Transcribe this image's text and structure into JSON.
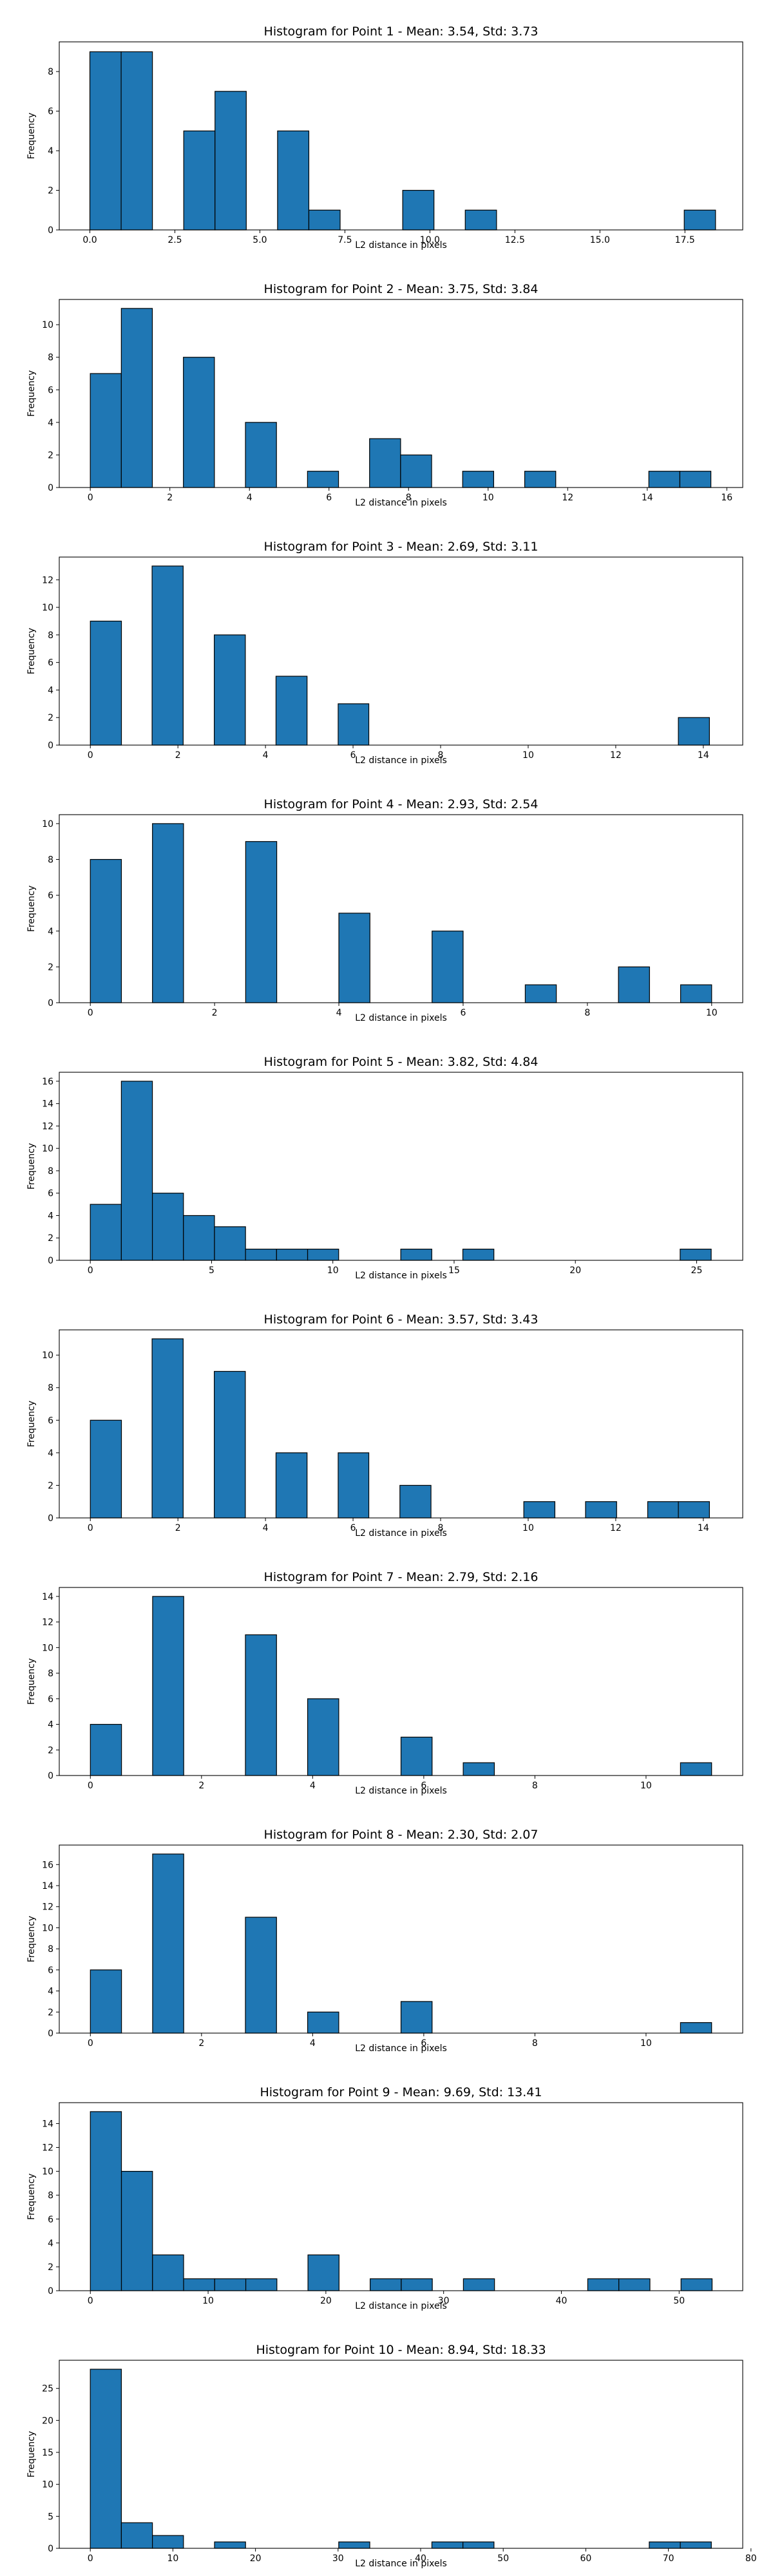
{
  "chart_data": [
    {
      "type": "histogram",
      "title": "Histogram for Point 1 - Mean: 3.54, Std: 3.73",
      "xlabel": "L2 distance in pixels",
      "ylabel": "Frequency",
      "xlim": [
        -0.9,
        19.2
      ],
      "ylim": [
        0,
        9.5
      ],
      "xticks": [
        0.0,
        2.5,
        5.0,
        7.5,
        10.0,
        12.5,
        15.0,
        17.5
      ],
      "xtick_labels": [
        "0.0",
        "2.5",
        "5.0",
        "7.5",
        "10.0",
        "12.5",
        "15.0",
        "17.5"
      ],
      "yticks": [
        0,
        2,
        4,
        6,
        8
      ],
      "bins": [
        {
          "x0": 0.0,
          "x1": 0.92,
          "count": 9
        },
        {
          "x0": 0.92,
          "x1": 1.84,
          "count": 9
        },
        {
          "x0": 2.76,
          "x1": 3.68,
          "count": 5
        },
        {
          "x0": 3.68,
          "x1": 4.6,
          "count": 7
        },
        {
          "x0": 5.52,
          "x1": 6.44,
          "count": 5
        },
        {
          "x0": 6.44,
          "x1": 7.36,
          "count": 1
        },
        {
          "x0": 9.2,
          "x1": 10.12,
          "count": 2
        },
        {
          "x0": 11.04,
          "x1": 11.96,
          "count": 1
        },
        {
          "x0": 17.48,
          "x1": 18.4,
          "count": 1
        }
      ]
    },
    {
      "type": "histogram",
      "title": "Histogram for Point 2 - Mean: 3.75, Std: 3.84",
      "xlabel": "L2 distance in pixels",
      "ylabel": "Frequency",
      "xlim": [
        -0.78,
        16.4
      ],
      "ylim": [
        0,
        11.55
      ],
      "xticks": [
        0,
        2,
        4,
        6,
        8,
        10,
        12,
        14,
        16
      ],
      "xtick_labels": [
        "0",
        "2",
        "4",
        "6",
        "8",
        "10",
        "12",
        "14",
        "16"
      ],
      "yticks": [
        0,
        2,
        4,
        6,
        8,
        10
      ],
      "bins": [
        {
          "x0": 0.0,
          "x1": 0.78,
          "count": 7
        },
        {
          "x0": 0.78,
          "x1": 1.56,
          "count": 11
        },
        {
          "x0": 2.34,
          "x1": 3.12,
          "count": 8
        },
        {
          "x0": 3.9,
          "x1": 4.68,
          "count": 4
        },
        {
          "x0": 5.46,
          "x1": 6.24,
          "count": 1
        },
        {
          "x0": 7.02,
          "x1": 7.8,
          "count": 3
        },
        {
          "x0": 7.8,
          "x1": 8.58,
          "count": 2
        },
        {
          "x0": 9.36,
          "x1": 10.14,
          "count": 1
        },
        {
          "x0": 10.92,
          "x1": 11.7,
          "count": 1
        },
        {
          "x0": 14.04,
          "x1": 14.82,
          "count": 1
        },
        {
          "x0": 14.82,
          "x1": 15.6,
          "count": 1
        }
      ]
    },
    {
      "type": "histogram",
      "title": "Histogram for Point 3 - Mean: 2.69, Std: 3.11",
      "xlabel": "L2 distance in pixels",
      "ylabel": "Frequency",
      "xlim": [
        -0.71,
        14.9
      ],
      "ylim": [
        0,
        13.65
      ],
      "xticks": [
        0,
        2,
        4,
        6,
        8,
        10,
        12,
        14
      ],
      "xtick_labels": [
        "0",
        "2",
        "4",
        "6",
        "8",
        "10",
        "12",
        "14"
      ],
      "yticks": [
        0,
        2,
        4,
        6,
        8,
        10,
        12
      ],
      "bins": [
        {
          "x0": 0.0,
          "x1": 0.71,
          "count": 9
        },
        {
          "x0": 1.41,
          "x1": 2.12,
          "count": 13
        },
        {
          "x0": 2.83,
          "x1": 3.54,
          "count": 8
        },
        {
          "x0": 4.24,
          "x1": 4.95,
          "count": 5
        },
        {
          "x0": 5.66,
          "x1": 6.36,
          "count": 3
        },
        {
          "x0": 13.43,
          "x1": 14.14,
          "count": 2
        }
      ]
    },
    {
      "type": "histogram",
      "title": "Histogram for Point 4 - Mean: 2.93, Std: 2.54",
      "xlabel": "L2 distance in pixels",
      "ylabel": "Frequency",
      "xlim": [
        -0.5,
        10.5
      ],
      "ylim": [
        0,
        10.5
      ],
      "xticks": [
        0,
        2,
        4,
        6,
        8,
        10
      ],
      "xtick_labels": [
        "0",
        "2",
        "4",
        "6",
        "8",
        "10"
      ],
      "yticks": [
        0,
        2,
        4,
        6,
        8,
        10
      ],
      "bins": [
        {
          "x0": 0.0,
          "x1": 0.5,
          "count": 8
        },
        {
          "x0": 1.0,
          "x1": 1.5,
          "count": 10
        },
        {
          "x0": 2.5,
          "x1": 3.0,
          "count": 9
        },
        {
          "x0": 4.0,
          "x1": 4.5,
          "count": 5
        },
        {
          "x0": 5.5,
          "x1": 6.0,
          "count": 4
        },
        {
          "x0": 7.0,
          "x1": 7.5,
          "count": 1
        },
        {
          "x0": 8.5,
          "x1": 9.0,
          "count": 2
        },
        {
          "x0": 9.5,
          "x1": 10.0,
          "count": 1
        }
      ]
    },
    {
      "type": "histogram",
      "title": "Histogram for Point 5 - Mean: 3.82, Std: 4.84",
      "xlabel": "L2 distance in pixels",
      "ylabel": "Frequency",
      "xlim": [
        -1.28,
        26.9
      ],
      "ylim": [
        0,
        16.8
      ],
      "xticks": [
        0,
        5,
        10,
        15,
        20,
        25
      ],
      "xtick_labels": [
        "0",
        "5",
        "10",
        "15",
        "20",
        "25"
      ],
      "yticks": [
        0,
        2,
        4,
        6,
        8,
        10,
        12,
        14,
        16
      ],
      "bins": [
        {
          "x0": 0.0,
          "x1": 1.28,
          "count": 5
        },
        {
          "x0": 1.28,
          "x1": 2.56,
          "count": 16
        },
        {
          "x0": 2.56,
          "x1": 3.84,
          "count": 6
        },
        {
          "x0": 3.84,
          "x1": 5.12,
          "count": 4
        },
        {
          "x0": 5.12,
          "x1": 6.4,
          "count": 3
        },
        {
          "x0": 6.4,
          "x1": 7.68,
          "count": 1
        },
        {
          "x0": 7.68,
          "x1": 8.96,
          "count": 1
        },
        {
          "x0": 8.96,
          "x1": 10.24,
          "count": 1
        },
        {
          "x0": 12.8,
          "x1": 14.08,
          "count": 1
        },
        {
          "x0": 15.36,
          "x1": 16.64,
          "count": 1
        },
        {
          "x0": 24.32,
          "x1": 25.6,
          "count": 1
        }
      ]
    },
    {
      "type": "histogram",
      "title": "Histogram for Point 6 - Mean: 3.57, Std: 3.43",
      "xlabel": "L2 distance in pixels",
      "ylabel": "Frequency",
      "xlim": [
        -0.71,
        14.9
      ],
      "ylim": [
        0,
        11.55
      ],
      "xticks": [
        0,
        2,
        4,
        6,
        8,
        10,
        12,
        14
      ],
      "xtick_labels": [
        "0",
        "2",
        "4",
        "6",
        "8",
        "10",
        "12",
        "14"
      ],
      "yticks": [
        0,
        2,
        4,
        6,
        8,
        10
      ],
      "bins": [
        {
          "x0": 0.0,
          "x1": 0.71,
          "count": 6
        },
        {
          "x0": 1.41,
          "x1": 2.12,
          "count": 11
        },
        {
          "x0": 2.83,
          "x1": 3.54,
          "count": 9
        },
        {
          "x0": 4.24,
          "x1": 4.95,
          "count": 4
        },
        {
          "x0": 5.66,
          "x1": 6.36,
          "count": 4
        },
        {
          "x0": 7.07,
          "x1": 7.78,
          "count": 2
        },
        {
          "x0": 9.9,
          "x1": 10.61,
          "count": 1
        },
        {
          "x0": 11.31,
          "x1": 12.02,
          "count": 1
        },
        {
          "x0": 12.73,
          "x1": 13.43,
          "count": 1
        },
        {
          "x0": 13.43,
          "x1": 14.14,
          "count": 1
        }
      ]
    },
    {
      "type": "histogram",
      "title": "Histogram for Point 7 - Mean: 2.79, Std: 2.16",
      "xlabel": "L2 distance in pixels",
      "ylabel": "Frequency",
      "xlim": [
        -0.56,
        11.74
      ],
      "ylim": [
        0,
        14.7
      ],
      "xticks": [
        0,
        2,
        4,
        6,
        8,
        10
      ],
      "xtick_labels": [
        "0",
        "2",
        "4",
        "6",
        "8",
        "10"
      ],
      "yticks": [
        0,
        2,
        4,
        6,
        8,
        10,
        12,
        14
      ],
      "bins": [
        {
          "x0": 0.0,
          "x1": 0.56,
          "count": 4
        },
        {
          "x0": 1.12,
          "x1": 1.68,
          "count": 14
        },
        {
          "x0": 2.79,
          "x1": 3.35,
          "count": 11
        },
        {
          "x0": 3.91,
          "x1": 4.47,
          "count": 6
        },
        {
          "x0": 5.59,
          "x1": 6.15,
          "count": 3
        },
        {
          "x0": 6.71,
          "x1": 7.27,
          "count": 1
        },
        {
          "x0": 10.62,
          "x1": 11.18,
          "count": 1
        }
      ]
    },
    {
      "type": "histogram",
      "title": "Histogram for Point 8 - Mean: 2.30, Std: 2.07",
      "xlabel": "L2 distance in pixels",
      "ylabel": "Frequency",
      "xlim": [
        -0.56,
        11.74
      ],
      "ylim": [
        0,
        17.85
      ],
      "xticks": [
        0,
        2,
        4,
        6,
        8,
        10
      ],
      "xtick_labels": [
        "0",
        "2",
        "4",
        "6",
        "8",
        "10"
      ],
      "yticks": [
        0,
        2,
        4,
        6,
        8,
        10,
        12,
        14,
        16
      ],
      "bins": [
        {
          "x0": 0.0,
          "x1": 0.56,
          "count": 6
        },
        {
          "x0": 1.12,
          "x1": 1.68,
          "count": 17
        },
        {
          "x0": 2.79,
          "x1": 3.35,
          "count": 11
        },
        {
          "x0": 3.91,
          "x1": 4.47,
          "count": 2
        },
        {
          "x0": 5.59,
          "x1": 6.15,
          "count": 3
        },
        {
          "x0": 10.62,
          "x1": 11.18,
          "count": 1
        }
      ]
    },
    {
      "type": "histogram",
      "title": "Histogram for Point 9 - Mean: 9.69, Std: 13.41",
      "xlabel": "L2 distance in pixels",
      "ylabel": "Frequency",
      "xlim": [
        -2.64,
        55.4
      ],
      "ylim": [
        0,
        15.75
      ],
      "xticks": [
        0,
        10,
        20,
        30,
        40,
        50
      ],
      "xtick_labels": [
        "0",
        "10",
        "20",
        "30",
        "40",
        "50"
      ],
      "yticks": [
        0,
        2,
        4,
        6,
        8,
        10,
        12,
        14
      ],
      "bins": [
        {
          "x0": 0.0,
          "x1": 2.64,
          "count": 15
        },
        {
          "x0": 2.64,
          "x1": 5.28,
          "count": 10
        },
        {
          "x0": 5.28,
          "x1": 7.92,
          "count": 3
        },
        {
          "x0": 7.92,
          "x1": 10.56,
          "count": 1
        },
        {
          "x0": 10.56,
          "x1": 13.2,
          "count": 1
        },
        {
          "x0": 13.2,
          "x1": 15.84,
          "count": 1
        },
        {
          "x0": 18.48,
          "x1": 21.12,
          "count": 3
        },
        {
          "x0": 23.76,
          "x1": 26.4,
          "count": 1
        },
        {
          "x0": 26.4,
          "x1": 29.04,
          "count": 1
        },
        {
          "x0": 31.68,
          "x1": 34.32,
          "count": 1
        },
        {
          "x0": 42.24,
          "x1": 44.88,
          "count": 1
        },
        {
          "x0": 44.88,
          "x1": 47.52,
          "count": 1
        },
        {
          "x0": 50.16,
          "x1": 52.8,
          "count": 1
        }
      ]
    },
    {
      "type": "histogram",
      "title": "Histogram for Point 10 - Mean: 8.94, Std: 18.33",
      "xlabel": "L2 distance in pixels",
      "ylabel": "Frequency",
      "xlim": [
        -3.76,
        79.0
      ],
      "ylim": [
        0,
        29.4
      ],
      "xticks": [
        0,
        10,
        20,
        30,
        40,
        50,
        60,
        70,
        80
      ],
      "xtick_labels": [
        "0",
        "10",
        "20",
        "30",
        "40",
        "50",
        "60",
        "70",
        "80"
      ],
      "yticks": [
        0,
        5,
        10,
        15,
        20,
        25
      ],
      "bins": [
        {
          "x0": 0.0,
          "x1": 3.76,
          "count": 28
        },
        {
          "x0": 3.76,
          "x1": 7.52,
          "count": 4
        },
        {
          "x0": 7.52,
          "x1": 11.28,
          "count": 2
        },
        {
          "x0": 15.04,
          "x1": 18.8,
          "count": 1
        },
        {
          "x0": 30.08,
          "x1": 33.84,
          "count": 1
        },
        {
          "x0": 41.36,
          "x1": 45.12,
          "count": 1
        },
        {
          "x0": 45.12,
          "x1": 48.88,
          "count": 1
        },
        {
          "x0": 67.68,
          "x1": 71.44,
          "count": 1
        },
        {
          "x0": 71.44,
          "x1": 75.2,
          "count": 1
        }
      ]
    }
  ],
  "colors": {
    "bar_fill": "#1f77b4",
    "bar_edge": "#000000",
    "background": "#ffffff"
  }
}
